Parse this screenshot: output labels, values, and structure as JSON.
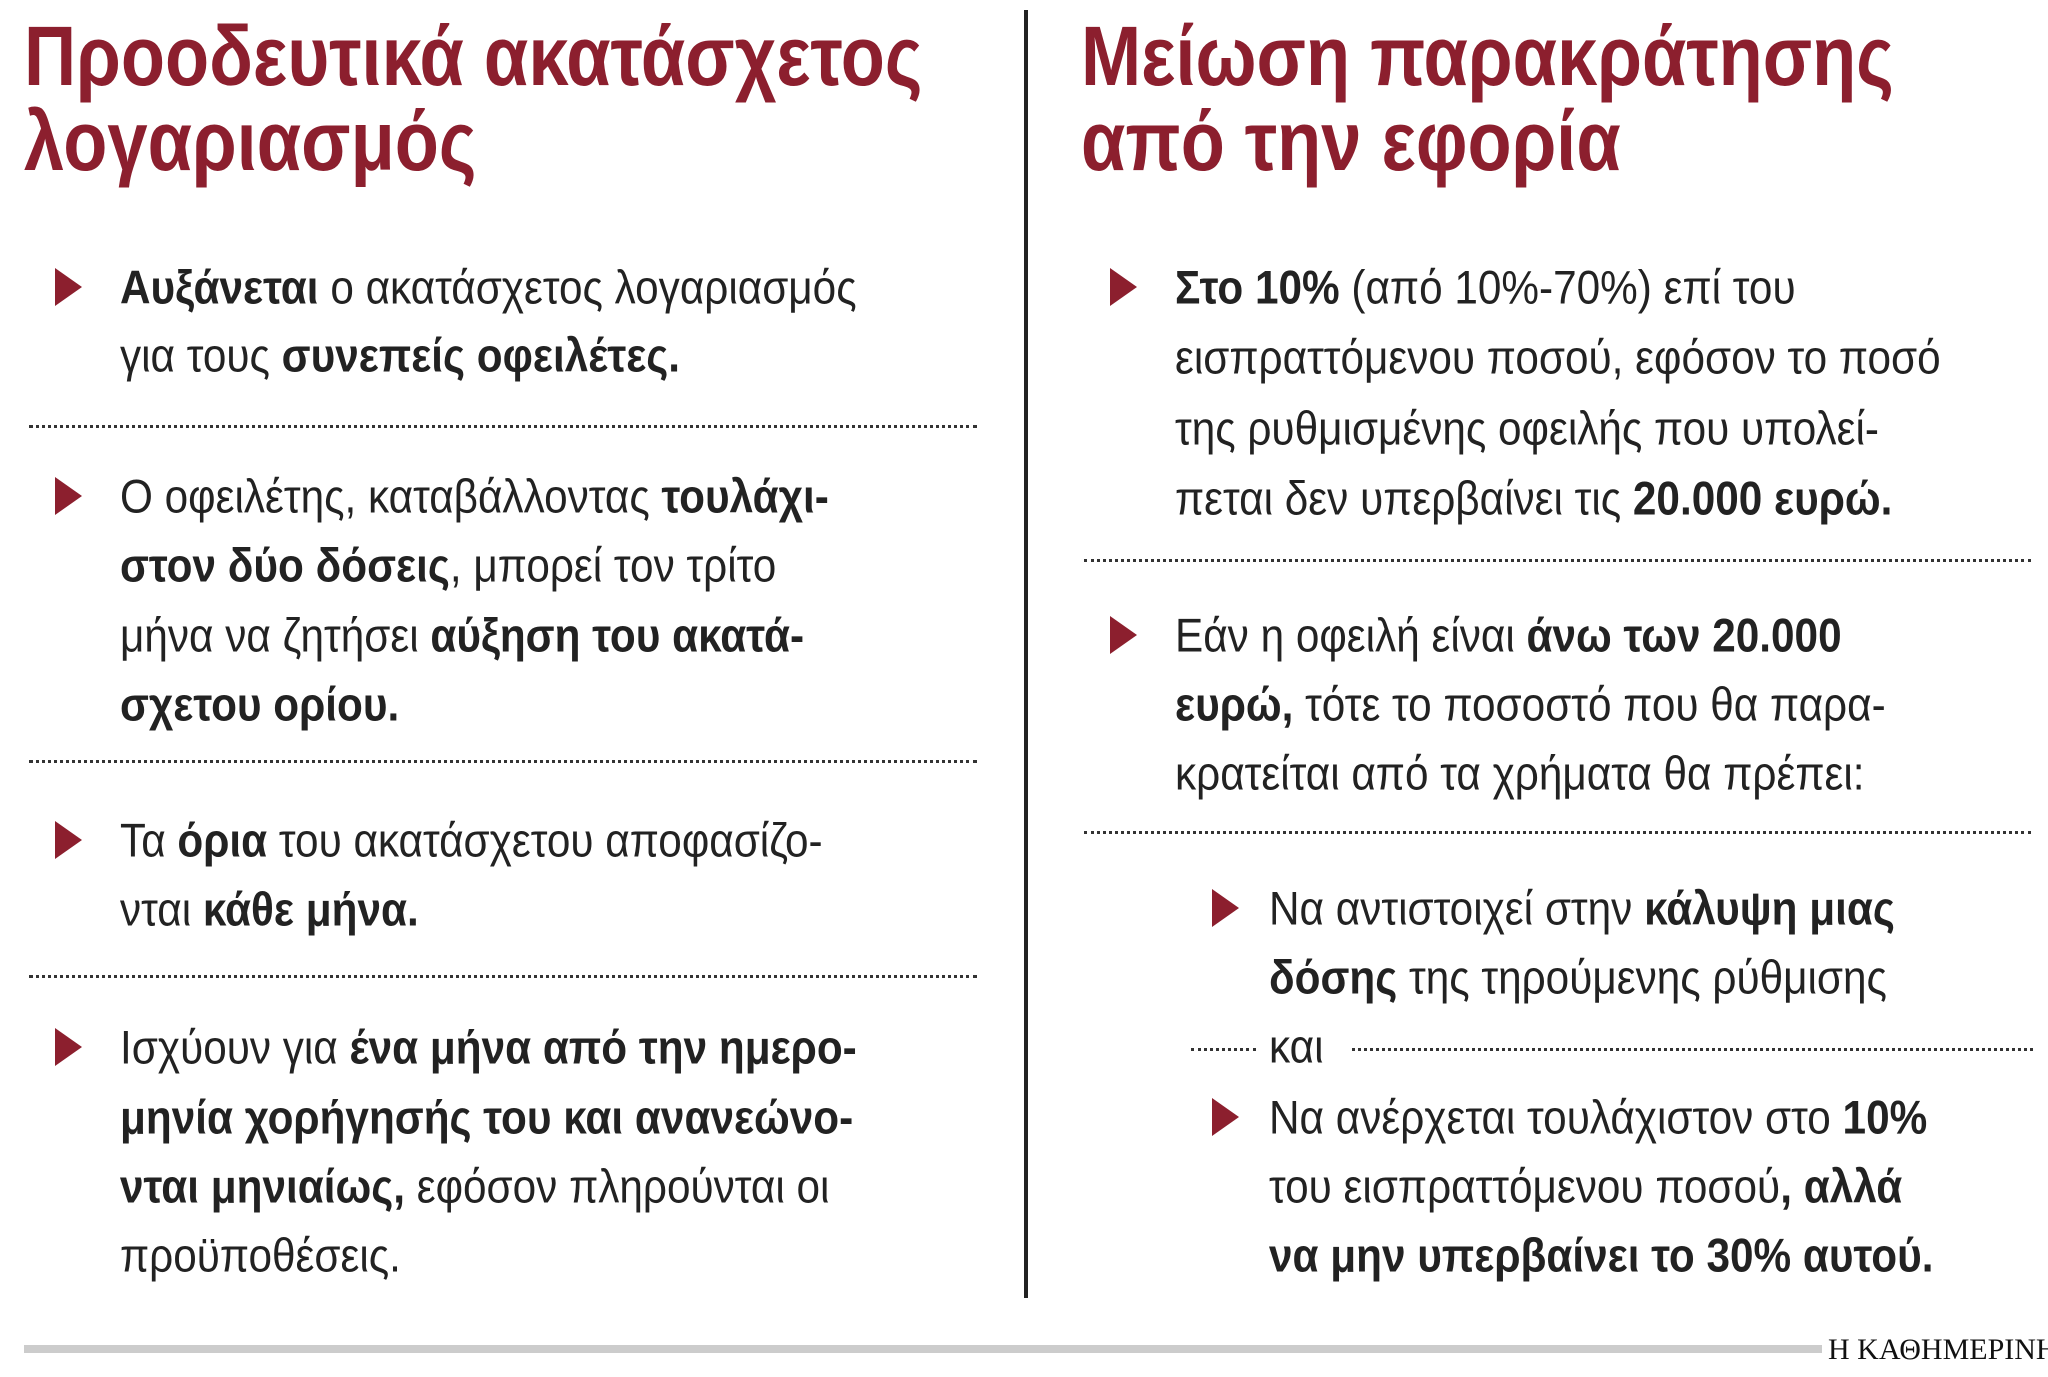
{
  "left": {
    "title": [
      "Προοδευτικά ακατάσχετος",
      "λογαριασμός"
    ],
    "items": [
      {
        "lines": [
          [
            {
              "text": "Αυξάνεται",
              "bold": true
            },
            {
              "text": " ο ακατάσχετος λογαριασμός"
            }
          ],
          [
            {
              "text": "για τους "
            },
            {
              "text": "συνεπείς οφειλέτες.",
              "bold": true
            }
          ]
        ]
      },
      {
        "lines": [
          [
            {
              "text": "Ο οφειλέτης, καταβάλλοντας "
            },
            {
              "text": "τουλάχι-",
              "bold": true
            }
          ],
          [
            {
              "text": "στον δύο δόσεις",
              "bold": true
            },
            {
              "text": ", μπορεί τον τρίτο"
            }
          ],
          [
            {
              "text": "μήνα να ζητήσει "
            },
            {
              "text": "αύξηση του ακατά-",
              "bold": true
            }
          ],
          [
            {
              "text": "σχετου ορίου.",
              "bold": true
            }
          ]
        ]
      },
      {
        "lines": [
          [
            {
              "text": "Τα "
            },
            {
              "text": "όρια",
              "bold": true
            },
            {
              "text": " του ακατάσχετου αποφασίζο-"
            }
          ],
          [
            {
              "text": "νται "
            },
            {
              "text": "κάθε μήνα.",
              "bold": true
            }
          ]
        ]
      },
      {
        "lines": [
          [
            {
              "text": "Ισχύουν για "
            },
            {
              "text": "ένα μήνα από την ημερο-",
              "bold": true
            }
          ],
          [
            {
              "text": "μηνία χορήγησής του και ανανεώνο-",
              "bold": true
            }
          ],
          [
            {
              "text": "νται μηνιαίως,",
              "bold": true
            },
            {
              "text": " εφόσον πληρούνται οι"
            }
          ],
          [
            {
              "text": "προϋποθέσεις."
            }
          ]
        ]
      }
    ]
  },
  "right": {
    "title": [
      "Μείωση παρακράτησης",
      "από την εφορία"
    ],
    "items": [
      {
        "lines": [
          [
            {
              "text": "Στο 10%",
              "bold": true
            },
            {
              "text": " (από 10%-70%) επί του"
            }
          ],
          [
            {
              "text": "εισπραττόμενου ποσού, εφόσον το ποσό"
            }
          ],
          [
            {
              "text": "της ρυθμισμένης οφειλής που υπολεί-"
            }
          ],
          [
            {
              "text": "πεται δεν υπερβαίνει τις "
            },
            {
              "text": "20.000 ευρώ.",
              "bold": true
            }
          ]
        ]
      },
      {
        "lines": [
          [
            {
              "text": "Εάν η οφειλή είναι "
            },
            {
              "text": "άνω των 20.000",
              "bold": true
            }
          ],
          [
            {
              "text": "ευρώ,",
              "bold": true
            },
            {
              "text": " τότε το ποσοστό που θα παρα-"
            }
          ],
          [
            {
              "text": "κρατείται από τα χρήματα θα πρέπει:"
            }
          ]
        ],
        "subitems": [
          {
            "lines": [
              [
                {
                  "text": "Να αντιστοιχεί στην "
                },
                {
                  "text": "κάλυψη μιας",
                  "bold": true
                }
              ],
              [
                {
                  "text": "δόσης",
                  "bold": true
                },
                {
                  "text": " της τηρούμενης ρύθμισης"
                }
              ],
              [
                {
                  "text": "και"
                }
              ]
            ]
          },
          {
            "lines": [
              [
                {
                  "text": "Να ανέρχεται τουλάχιστον στο "
                },
                {
                  "text": "10%",
                  "bold": true
                }
              ],
              [
                {
                  "text": "του εισπραττόμενου ποσού"
                },
                {
                  "text": ", αλλά",
                  "bold": true
                }
              ],
              [
                {
                  "text": "να μην υπερβαίνει το 30% αυτού.",
                  "bold": true
                }
              ]
            ]
          }
        ]
      }
    ]
  },
  "footer": {
    "credit": "Η ΚΑΘΗΜΕΡΙΝΗ"
  }
}
